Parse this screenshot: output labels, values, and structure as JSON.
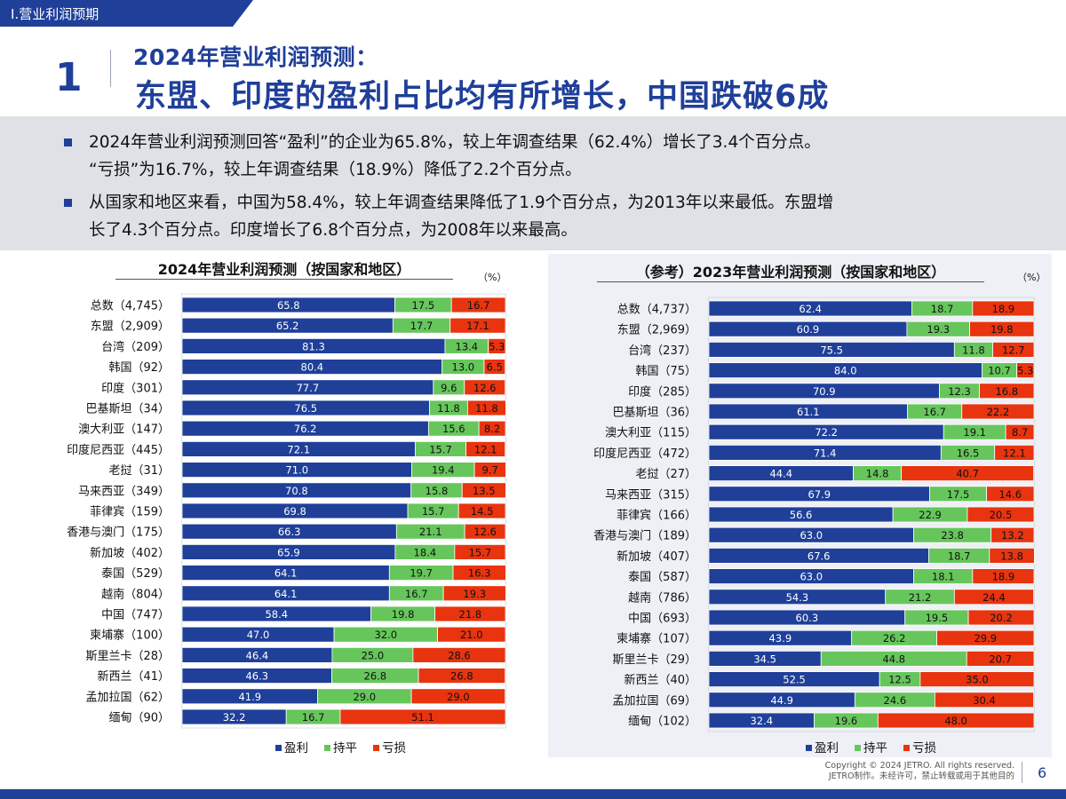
{
  "header": {
    "section_tab": "I.营业利润预期",
    "number": "1",
    "subtitle": "2024年营业利润预测：",
    "title": "东盟、印度的盈利占比均有所增长，中国跌破6成"
  },
  "summary": {
    "bullet1_line1": "2024年营业利润预测回答“盈利”的企业为65.8%，较上年调查结果（62.4%）增长了3.4个百分点。",
    "bullet1_line2": "“亏损”为16.7%，较上年调查结果（18.9%）降低了2.2个百分点。",
    "bullet2_line1": "从国家和地区来看，中国为58.4%，较上年调查结果降低了1.9个百分点，为2013年以来最低。东盟增",
    "bullet2_line2": "长了4.3个百分点。印度增长了6.8个百分点，为2008年以来最高。"
  },
  "colors": {
    "profit": "#1f3f99",
    "flat": "#66c65c",
    "loss": "#e8340f",
    "brand": "#1f3f99"
  },
  "chart_data": [
    {
      "type": "bar",
      "stacked": true,
      "orientation": "horizontal",
      "title": "2024年营业利润预测（按国家和地区）",
      "unit": "（%）",
      "categories": [
        "总数（4,745）",
        "东盟（2,909）",
        "台湾（209）",
        "韩国（92）",
        "印度（301）",
        "巴基斯坦（34）",
        "澳大利亚（147）",
        "印度尼西亚（445）",
        "老挝（31）",
        "马来西亚（349）",
        "菲律宾（159）",
        "香港与澳门（175）",
        "新加坡（402）",
        "泰国（529）",
        "越南（804）",
        "中国（747）",
        "柬埔寨（100）",
        "斯里兰卡（28）",
        "新西兰（41）",
        "孟加拉国（62）",
        "缅甸（90）"
      ],
      "series": [
        {
          "name": "盈利",
          "values": [
            65.8,
            65.2,
            81.3,
            80.4,
            77.7,
            76.5,
            76.2,
            72.1,
            71.0,
            70.8,
            69.8,
            66.3,
            65.9,
            64.1,
            64.1,
            58.4,
            47.0,
            46.4,
            46.3,
            41.9,
            32.2
          ]
        },
        {
          "name": "持平",
          "values": [
            17.5,
            17.7,
            13.4,
            13.0,
            9.6,
            11.8,
            15.6,
            15.7,
            19.4,
            15.8,
            15.7,
            21.1,
            18.4,
            19.7,
            16.7,
            19.8,
            32.0,
            25.0,
            26.8,
            29.0,
            16.7
          ]
        },
        {
          "name": "亏损",
          "values": [
            16.7,
            17.1,
            5.3,
            6.5,
            12.6,
            11.8,
            8.2,
            12.1,
            9.7,
            13.5,
            14.5,
            12.6,
            15.7,
            16.3,
            19.3,
            21.8,
            21.0,
            28.6,
            26.8,
            29.0,
            51.1
          ]
        }
      ],
      "xlim": [
        0,
        100
      ],
      "legend": "bottom"
    },
    {
      "type": "bar",
      "stacked": true,
      "orientation": "horizontal",
      "title": "（参考）2023年营业利润预测（按国家和地区）",
      "unit": "（%）",
      "categories": [
        "总数（4,737）",
        "东盟（2,969）",
        "台湾（237）",
        "韩国（75）",
        "印度（285）",
        "巴基斯坦（36）",
        "澳大利亚（115）",
        "印度尼西亚（472）",
        "老挝（27）",
        "马来西亚（315）",
        "菲律宾（166）",
        "香港与澳门（189）",
        "新加坡（407）",
        "泰国（587）",
        "越南（786）",
        "中国（693）",
        "柬埔寨（107）",
        "斯里兰卡（29）",
        "新西兰（40）",
        "孟加拉国（69）",
        "缅甸（102）"
      ],
      "series": [
        {
          "name": "盈利",
          "values": [
            62.4,
            60.9,
            75.5,
            84.0,
            70.9,
            61.1,
            72.2,
            71.4,
            44.4,
            67.9,
            56.6,
            63.0,
            67.6,
            63.0,
            54.3,
            60.3,
            43.9,
            34.5,
            52.5,
            44.9,
            32.4
          ]
        },
        {
          "name": "持平",
          "values": [
            18.7,
            19.3,
            11.8,
            10.7,
            12.3,
            16.7,
            19.1,
            16.5,
            14.8,
            17.5,
            22.9,
            23.8,
            18.7,
            18.1,
            21.2,
            19.5,
            26.2,
            44.8,
            12.5,
            24.6,
            19.6
          ]
        },
        {
          "name": "亏损",
          "values": [
            18.9,
            19.8,
            12.7,
            5.3,
            16.8,
            22.2,
            8.7,
            12.1,
            40.7,
            14.6,
            20.5,
            13.2,
            13.8,
            18.9,
            24.4,
            20.2,
            29.9,
            20.7,
            35.0,
            30.4,
            48.0
          ]
        }
      ],
      "xlim": [
        0,
        100
      ],
      "legend": "bottom"
    }
  ],
  "footer": {
    "copyright": "Copyright © 2024 JETRO. All rights reserved.",
    "notice": "JETRO制作。未经许可，禁止转载或用于其他目的",
    "page": "6"
  }
}
